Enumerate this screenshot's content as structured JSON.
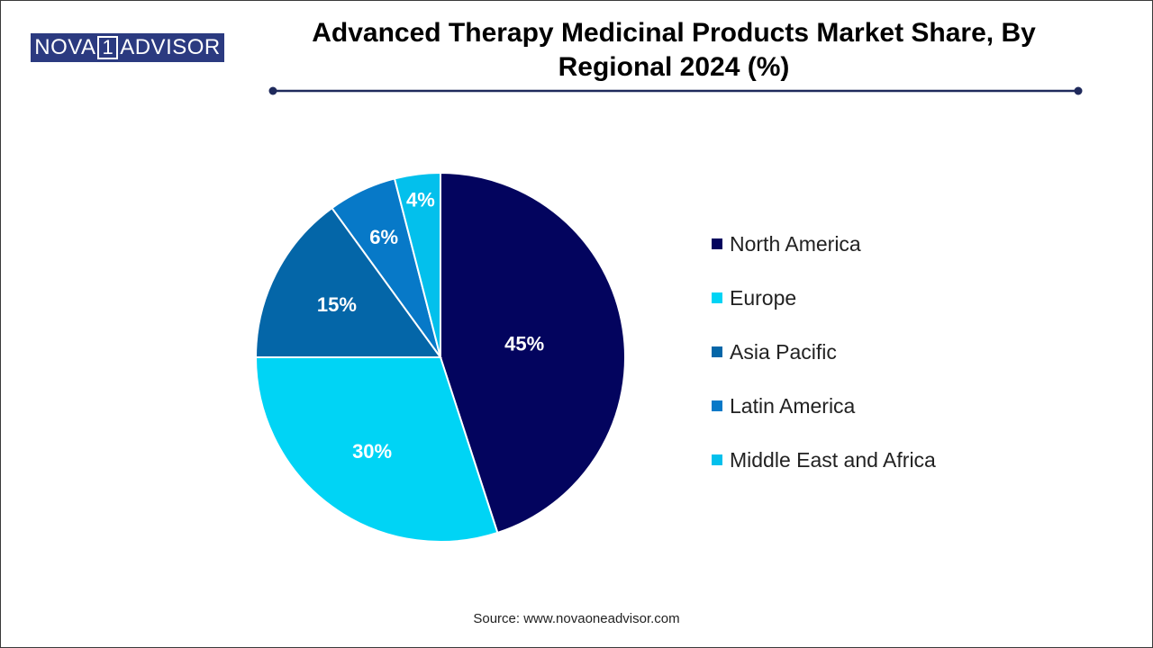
{
  "logo": {
    "left_text": "NOVA",
    "box_text": "1",
    "right_text": "ADVISOR"
  },
  "source": "Source: www.novaoneadvisor.com",
  "colors": {
    "title_rule": "#1f2a5c",
    "slice_border": "#ffffff",
    "label_text": "#ffffff"
  },
  "chart_data": {
    "type": "pie",
    "title": "Advanced Therapy Medicinal Products Market Share, By Regional 2024 (%)",
    "legend_position": "right",
    "slices": [
      {
        "label": "North America",
        "value": 45,
        "display": "45%",
        "color": "#03045e"
      },
      {
        "label": "Europe",
        "value": 30,
        "display": "30%",
        "color": "#00d4f5"
      },
      {
        "label": "Asia Pacific",
        "value": 15,
        "display": "15%",
        "color": "#0466a8"
      },
      {
        "label": "Latin America",
        "value": 6,
        "display": "6%",
        "color": "#0779c8"
      },
      {
        "label": "Middle East and Africa",
        "value": 4,
        "display": "4%",
        "color": "#03c0ec"
      }
    ]
  }
}
